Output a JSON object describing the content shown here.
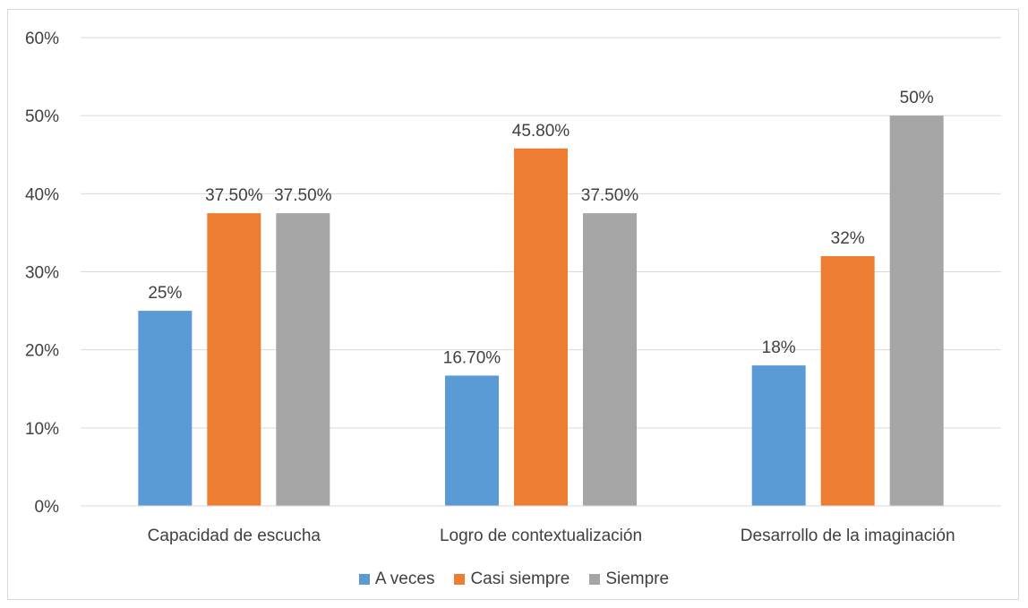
{
  "chart_data": {
    "type": "bar",
    "categories": [
      "Capacidad de escucha",
      "Logro de contextualización",
      "Desarrollo de la imaginación"
    ],
    "series": [
      {
        "name": "A veces",
        "color": "#5b9bd5",
        "values": [
          25,
          16.7,
          18
        ],
        "labels": [
          "25%",
          "16.70%",
          "18%"
        ]
      },
      {
        "name": "Casi siempre",
        "color": "#ed7d31",
        "values": [
          37.5,
          45.8,
          32
        ],
        "labels": [
          "37.50%",
          "45.80%",
          "32%"
        ]
      },
      {
        "name": "Siempre",
        "color": "#a5a5a5",
        "values": [
          37.5,
          37.5,
          50
        ],
        "labels": [
          "37.50%",
          "37.50%",
          "50%"
        ]
      }
    ],
    "ylim": [
      0,
      60
    ],
    "yticks": [
      "0%",
      "10%",
      "20%",
      "30%",
      "40%",
      "50%",
      "60%"
    ],
    "grid": true,
    "legend_position": "bottom"
  }
}
